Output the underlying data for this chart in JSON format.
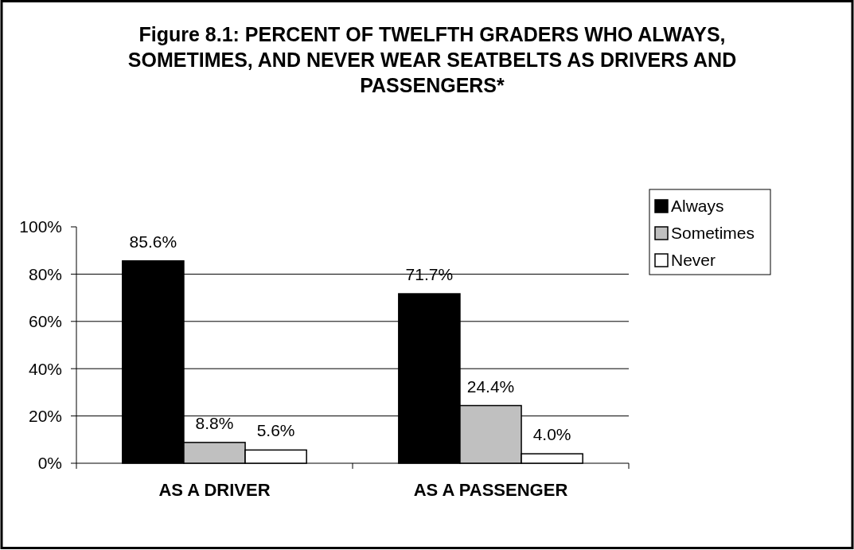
{
  "chart_data": {
    "type": "bar",
    "title": "Figure 8.1: PERCENT OF TWELFTH GRADERS WHO ALWAYS, SOMETIMES, AND NEVER WEAR SEATBELTS AS DRIVERS AND PASSENGERS*",
    "categories": [
      "AS A DRIVER",
      "AS A PASSENGER"
    ],
    "series": [
      {
        "name": "Always",
        "color": "#000000",
        "values": [
          85.6,
          71.7
        ],
        "value_labels": [
          "85.6%",
          "71.7%"
        ]
      },
      {
        "name": "Sometimes",
        "color": "#c0c0c0",
        "values": [
          8.8,
          24.4
        ],
        "value_labels": [
          "8.8%",
          "24.4%"
        ]
      },
      {
        "name": "Never",
        "color": "#ffffff",
        "values": [
          5.6,
          4.0
        ],
        "value_labels": [
          "5.6%",
          "4.0%"
        ]
      }
    ],
    "ylim": [
      0,
      100
    ],
    "yticks": [
      {
        "value": 0,
        "label": "0%"
      },
      {
        "value": 20,
        "label": "20%"
      },
      {
        "value": 40,
        "label": "40%"
      },
      {
        "value": 60,
        "label": "60%"
      },
      {
        "value": 80,
        "label": "80%"
      },
      {
        "value": 100,
        "label": "100%"
      }
    ],
    "grid": "y",
    "legend": "right"
  }
}
